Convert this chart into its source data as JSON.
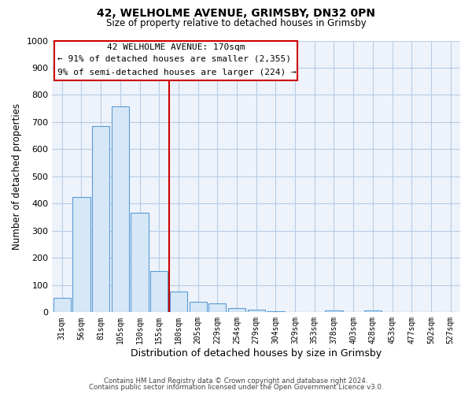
{
  "title1": "42, WELHOLME AVENUE, GRIMSBY, DN32 0PN",
  "title2": "Size of property relative to detached houses in Grimsby",
  "xlabel": "Distribution of detached houses by size in Grimsby",
  "ylabel": "Number of detached properties",
  "bar_labels": [
    "31sqm",
    "56sqm",
    "81sqm",
    "105sqm",
    "130sqm",
    "155sqm",
    "180sqm",
    "205sqm",
    "229sqm",
    "254sqm",
    "279sqm",
    "304sqm",
    "329sqm",
    "353sqm",
    "378sqm",
    "403sqm",
    "428sqm",
    "453sqm",
    "477sqm",
    "502sqm",
    "527sqm"
  ],
  "bar_values": [
    52,
    425,
    685,
    757,
    365,
    152,
    75,
    40,
    32,
    15,
    10,
    5,
    0,
    0,
    8,
    0,
    8,
    0,
    0,
    0,
    0
  ],
  "bar_color": "#d6e8f7",
  "bar_edge_color": "#5b9bd5",
  "vline_color": "#cc0000",
  "annotation_title": "42 WELHOLME AVENUE: 170sqm",
  "annotation_line1": "← 91% of detached houses are smaller (2,355)",
  "annotation_line2": "9% of semi-detached houses are larger (224) →",
  "annotation_box_color": "#ffffff",
  "annotation_box_edge": "#cc0000",
  "ylim": [
    0,
    1000
  ],
  "yticks": [
    0,
    100,
    200,
    300,
    400,
    500,
    600,
    700,
    800,
    900,
    1000
  ],
  "footer1": "Contains HM Land Registry data © Crown copyright and database right 2024.",
  "footer2": "Contains public sector information licensed under the Open Government Licence v3.0.",
  "bg_color": "#ffffff",
  "plot_bg_color": "#eef3fb",
  "grid_color": "#b8cce4"
}
